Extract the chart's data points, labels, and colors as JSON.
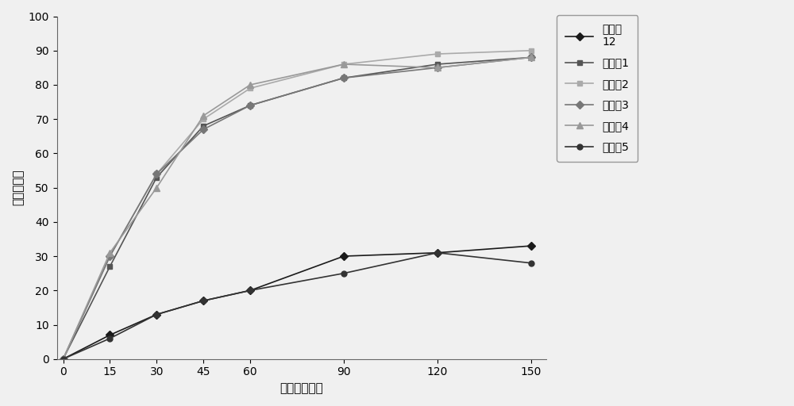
{
  "x": [
    0,
    15,
    30,
    45,
    60,
    90,
    120,
    150
  ],
  "series": [
    {
      "label": "实施例\n12",
      "values": [
        0,
        7,
        13,
        17,
        20,
        30,
        31,
        33
      ],
      "color": "#1a1a1a",
      "marker": "D",
      "linestyle": "-",
      "linewidth": 1.2,
      "markersize": 5
    },
    {
      "label": "实施例1",
      "values": [
        0,
        27,
        53,
        68,
        74,
        82,
        86,
        88
      ],
      "color": "#555555",
      "marker": "s",
      "linestyle": "-",
      "linewidth": 1.2,
      "markersize": 5
    },
    {
      "label": "实施例2",
      "values": [
        0,
        30,
        54,
        70,
        79,
        86,
        89,
        90
      ],
      "color": "#aaaaaa",
      "marker": "s",
      "linestyle": "-",
      "linewidth": 1.2,
      "markersize": 5
    },
    {
      "label": "实施例3",
      "values": [
        0,
        30,
        54,
        67,
        74,
        82,
        85,
        88
      ],
      "color": "#777777",
      "marker": "D",
      "linestyle": "-",
      "linewidth": 1.2,
      "markersize": 5
    },
    {
      "label": "实施例4",
      "values": [
        0,
        31,
        50,
        71,
        80,
        86,
        85,
        88
      ],
      "color": "#999999",
      "marker": "^",
      "linestyle": "-",
      "linewidth": 1.2,
      "markersize": 6
    },
    {
      "label": "实施例5",
      "values": [
        0,
        6,
        13,
        17,
        20,
        25,
        31,
        28
      ],
      "color": "#333333",
      "marker": "o",
      "linestyle": "-",
      "linewidth": 1.2,
      "markersize": 5
    }
  ],
  "xlabel": "时间（分钟）",
  "ylabel": "累积释放度",
  "xlim_min": -2,
  "xlim_max": 155,
  "ylim_min": 0,
  "ylim_max": 100,
  "xticks": [
    0,
    15,
    30,
    45,
    60,
    90,
    120,
    150
  ],
  "yticks": [
    0,
    10,
    20,
    30,
    40,
    50,
    60,
    70,
    80,
    90,
    100
  ],
  "background_color": "#ffffff",
  "legend_fontsize": 10,
  "axis_fontsize": 11,
  "tick_fontsize": 10,
  "figsize": [
    10.0,
    5.12
  ],
  "dpi": 100
}
